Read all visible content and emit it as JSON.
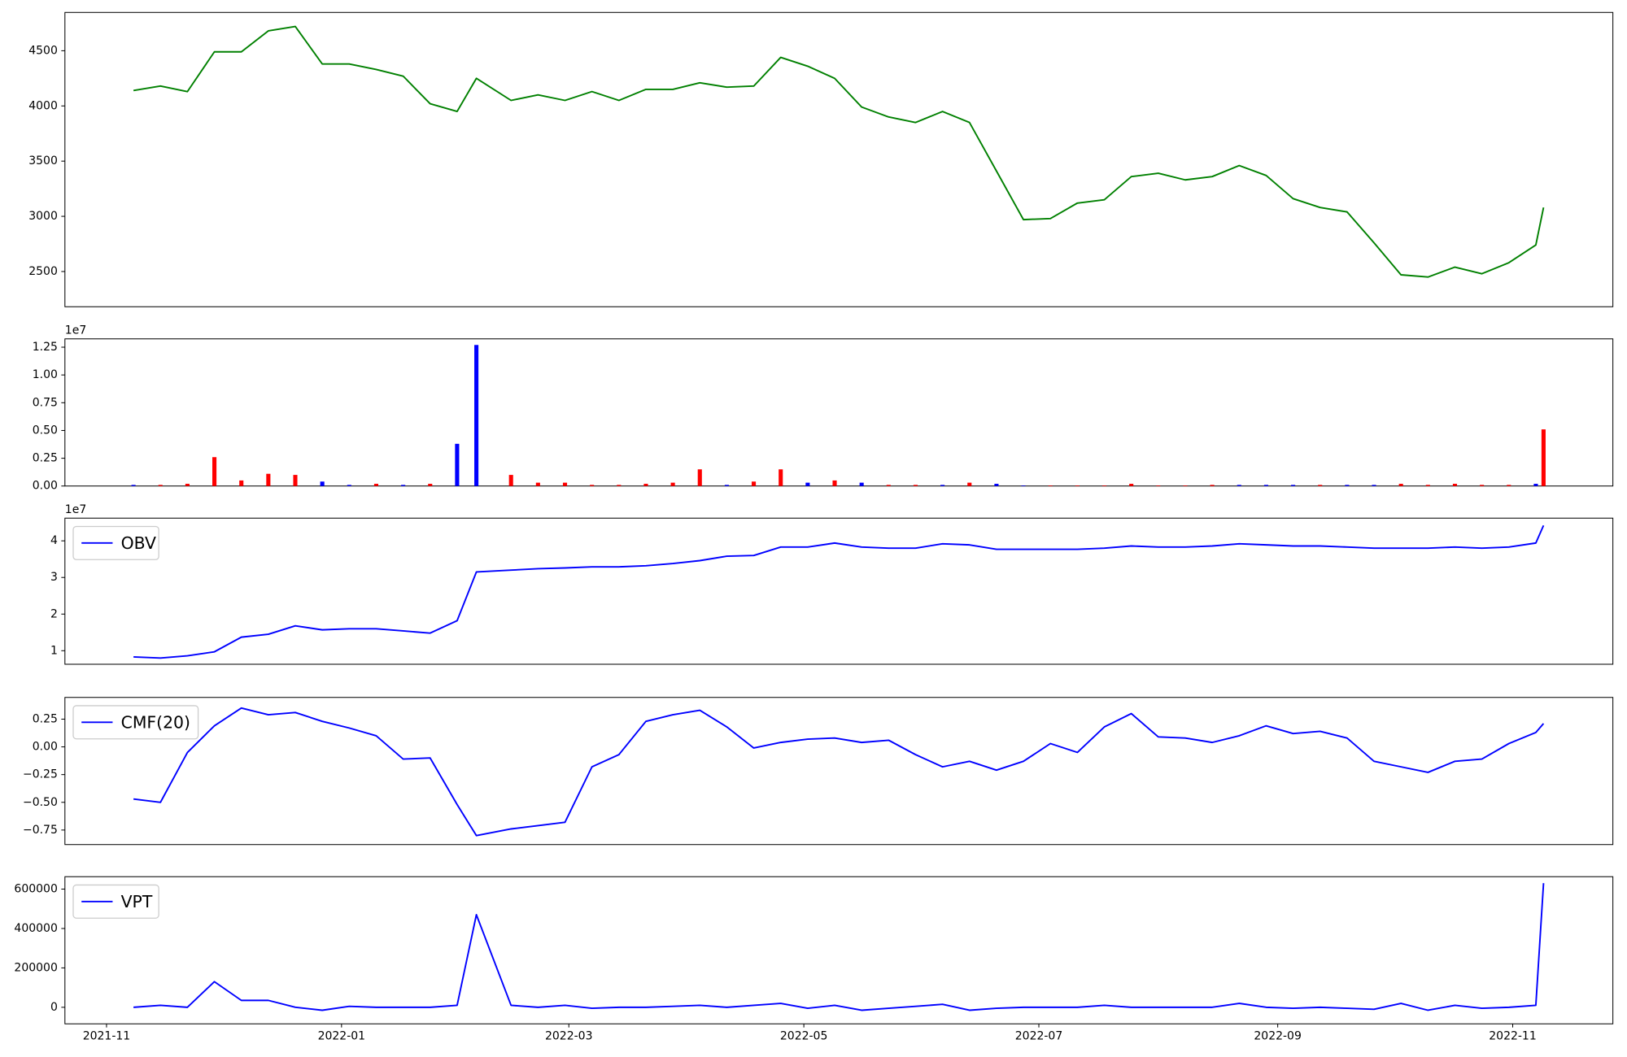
{
  "chart_data": [
    {
      "type": "line",
      "color": "green",
      "x": [
        7,
        14,
        21,
        28,
        35,
        42,
        49,
        56,
        63,
        70,
        77,
        84,
        91,
        96,
        105,
        112,
        119,
        126,
        133,
        140,
        147,
        154,
        161,
        168,
        175,
        182,
        189,
        196,
        203,
        210,
        217,
        224,
        231,
        238,
        245,
        252,
        259,
        266,
        273,
        280,
        287,
        294,
        301,
        308,
        315,
        322,
        329,
        336,
        343,
        350,
        357,
        364,
        371,
        373
      ],
      "values": [
        4140,
        4180,
        4130,
        4490,
        4490,
        4680,
        4720,
        4380,
        4380,
        4330,
        4270,
        4020,
        3950,
        4250,
        4050,
        4100,
        4050,
        4130,
        4050,
        4150,
        4150,
        4210,
        4170,
        4180,
        4440,
        4360,
        4250,
        3990,
        3900,
        3850,
        3950,
        3850,
        3410,
        2970,
        2980,
        3120,
        3150,
        3360,
        3390,
        3330,
        3360,
        3460,
        3370,
        3160,
        3080,
        3040,
        2760,
        2470,
        2450,
        2540,
        2480,
        2580,
        2740,
        3080
      ],
      "xlim": [
        -10.8,
        391
      ],
      "ylim": [
        2181,
        4847
      ],
      "yticks": [
        2500,
        3000,
        3500,
        4000,
        4500
      ]
    },
    {
      "type": "bar",
      "x": [
        7,
        14,
        21,
        28,
        35,
        42,
        49,
        56,
        63,
        70,
        77,
        84,
        91,
        96,
        105,
        112,
        119,
        126,
        133,
        140,
        147,
        154,
        161,
        168,
        175,
        182,
        189,
        196,
        203,
        210,
        217,
        224,
        231,
        238,
        245,
        252,
        259,
        266,
        273,
        280,
        287,
        294,
        301,
        308,
        315,
        322,
        329,
        336,
        343,
        350,
        357,
        364,
        371,
        373
      ],
      "values": [
        100000,
        100000,
        200000,
        2600000,
        500000,
        1100000,
        1000000,
        400000,
        100000,
        200000,
        100000,
        200000,
        3800000,
        12700000,
        1000000,
        300000,
        300000,
        100000,
        100000,
        200000,
        300000,
        1500000,
        100000,
        400000,
        1500000,
        300000,
        500000,
        300000,
        100000,
        100000,
        100000,
        300000,
        200000,
        50000,
        50000,
        50000,
        50000,
        200000,
        50000,
        50000,
        100000,
        100000,
        100000,
        100000,
        100000,
        100000,
        100000,
        200000,
        100000,
        200000,
        100000,
        100000,
        200000,
        5100000
      ],
      "colors": [
        "blue",
        "red",
        "red",
        "red",
        "red",
        "red",
        "red",
        "blue",
        "blue",
        "red",
        "blue",
        "red",
        "blue",
        "blue",
        "red",
        "red",
        "red",
        "red",
        "red",
        "red",
        "red",
        "red",
        "blue",
        "red",
        "red",
        "blue",
        "red",
        "blue",
        "red",
        "red",
        "blue",
        "red",
        "blue",
        "blue",
        "red",
        "red",
        "red",
        "red",
        "red",
        "red",
        "red",
        "blue",
        "blue",
        "blue",
        "red",
        "blue",
        "blue",
        "red",
        "red",
        "red",
        "red",
        "red",
        "blue",
        "red"
      ],
      "xlim": [
        -10.8,
        391
      ],
      "ylim": [
        0,
        13250000
      ],
      "offset_text": "1e7",
      "yticks": [
        {
          "value": 0,
          "label": "0.00"
        },
        {
          "value": 2500000,
          "label": "0.25"
        },
        {
          "value": 5000000,
          "label": "0.50"
        },
        {
          "value": 7500000,
          "label": "0.75"
        },
        {
          "value": 10000000,
          "label": "1.00"
        },
        {
          "value": 12500000,
          "label": "1.25"
        }
      ]
    },
    {
      "type": "line",
      "legend": "upper left",
      "x": [
        7,
        14,
        21,
        28,
        35,
        42,
        49,
        56,
        63,
        70,
        77,
        84,
        91,
        96,
        105,
        112,
        119,
        126,
        133,
        140,
        147,
        154,
        161,
        168,
        175,
        182,
        189,
        196,
        203,
        210,
        217,
        224,
        231,
        238,
        245,
        252,
        259,
        266,
        273,
        280,
        287,
        294,
        301,
        308,
        315,
        322,
        329,
        336,
        343,
        350,
        357,
        364,
        371,
        373
      ],
      "series": [
        {
          "name": "OBV",
          "color": "blue",
          "values": [
            8300000,
            8000000,
            8600000,
            9700000,
            13700000,
            14500000,
            16800000,
            15700000,
            16000000,
            16000000,
            15400000,
            14800000,
            18200000,
            31500000,
            32000000,
            32400000,
            32600000,
            32900000,
            32900000,
            33200000,
            33800000,
            34600000,
            35800000,
            36000000,
            38300000,
            38300000,
            39400000,
            38300000,
            38000000,
            38000000,
            39200000,
            38900000,
            37700000,
            37700000,
            37700000,
            37700000,
            38000000,
            38600000,
            38300000,
            38300000,
            38600000,
            39200000,
            38900000,
            38600000,
            38600000,
            38300000,
            38000000,
            38000000,
            38000000,
            38300000,
            38000000,
            38300000,
            39400000,
            44200000
          ]
        }
      ],
      "xlim": [
        -10.8,
        391
      ],
      "ylim": [
        6300000,
        46200000
      ],
      "offset_text": "1e7",
      "yticks": [
        {
          "value": 10000000,
          "label": "1"
        },
        {
          "value": 20000000,
          "label": "2"
        },
        {
          "value": 30000000,
          "label": "3"
        },
        {
          "value": 40000000,
          "label": "4"
        }
      ]
    },
    {
      "type": "line",
      "legend": "upper left",
      "x": [
        7,
        14,
        21,
        28,
        35,
        42,
        49,
        56,
        63,
        70,
        77,
        84,
        91,
        96,
        105,
        112,
        119,
        126,
        133,
        140,
        147,
        154,
        161,
        168,
        175,
        182,
        189,
        196,
        203,
        210,
        217,
        224,
        231,
        238,
        245,
        252,
        259,
        266,
        273,
        280,
        287,
        294,
        301,
        308,
        315,
        322,
        329,
        336,
        343,
        350,
        357,
        364,
        371,
        373
      ],
      "series": [
        {
          "name": "CMF(20)",
          "color": "blue",
          "values": [
            -0.47,
            -0.5,
            -0.05,
            0.19,
            0.35,
            0.29,
            0.31,
            0.23,
            0.17,
            0.1,
            -0.11,
            -0.1,
            -0.52,
            -0.8,
            -0.74,
            -0.71,
            -0.68,
            -0.18,
            -0.07,
            0.23,
            0.29,
            0.33,
            0.18,
            -0.01,
            0.04,
            0.07,
            0.08,
            0.04,
            0.06,
            -0.07,
            -0.18,
            -0.13,
            -0.21,
            -0.13,
            0.03,
            -0.05,
            0.18,
            0.3,
            0.09,
            0.08,
            0.04,
            0.1,
            0.19,
            0.12,
            0.14,
            0.08,
            -0.13,
            -0.18,
            -0.23,
            -0.13,
            -0.11,
            0.03,
            0.13,
            0.21
          ]
        }
      ],
      "xlim": [
        -10.8,
        391
      ],
      "ylim": [
        -0.881,
        0.446
      ],
      "yticks": [
        {
          "value": -0.75,
          "label": "−0.75"
        },
        {
          "value": -0.5,
          "label": "−0.50"
        },
        {
          "value": -0.25,
          "label": "−0.25"
        },
        {
          "value": 0,
          "label": "0.00"
        },
        {
          "value": 0.25,
          "label": "0.25"
        }
      ]
    },
    {
      "type": "line",
      "legend": "upper left",
      "x": [
        7,
        14,
        21,
        28,
        35,
        42,
        49,
        56,
        63,
        70,
        77,
        84,
        91,
        96,
        105,
        112,
        119,
        126,
        133,
        140,
        147,
        154,
        161,
        168,
        175,
        182,
        189,
        196,
        203,
        210,
        217,
        224,
        231,
        238,
        245,
        252,
        259,
        266,
        273,
        280,
        287,
        294,
        301,
        308,
        315,
        322,
        329,
        336,
        343,
        350,
        357,
        364,
        371,
        373
      ],
      "series": [
        {
          "name": "VPT",
          "color": "blue",
          "values": [
            0,
            10000,
            0,
            130000,
            35000,
            35000,
            0,
            -15000,
            5000,
            0,
            0,
            0,
            10000,
            470000,
            10000,
            0,
            10000,
            -5000,
            0,
            0,
            5000,
            10000,
            0,
            10000,
            20000,
            -5000,
            10000,
            -15000,
            -5000,
            5000,
            15000,
            -15000,
            -5000,
            0,
            0,
            0,
            10000,
            0,
            0,
            0,
            0,
            20000,
            0,
            -5000,
            0,
            -5000,
            -10000,
            20000,
            -15000,
            10000,
            -5000,
            0,
            10000,
            630000
          ]
        }
      ],
      "xlim": [
        -10.8,
        391
      ],
      "ylim": [
        -84000,
        663000
      ],
      "yticks": [
        0,
        200000,
        400000,
        600000
      ],
      "xticks": [
        {
          "value": 0,
          "label": "2021-11"
        },
        {
          "value": 61,
          "label": "2022-01"
        },
        {
          "value": 120,
          "label": "2022-03"
        },
        {
          "value": 181,
          "label": "2022-05"
        },
        {
          "value": 242,
          "label": "2022-07"
        },
        {
          "value": 304,
          "label": "2022-09"
        },
        {
          "value": 365,
          "label": "2022-11"
        }
      ]
    }
  ]
}
